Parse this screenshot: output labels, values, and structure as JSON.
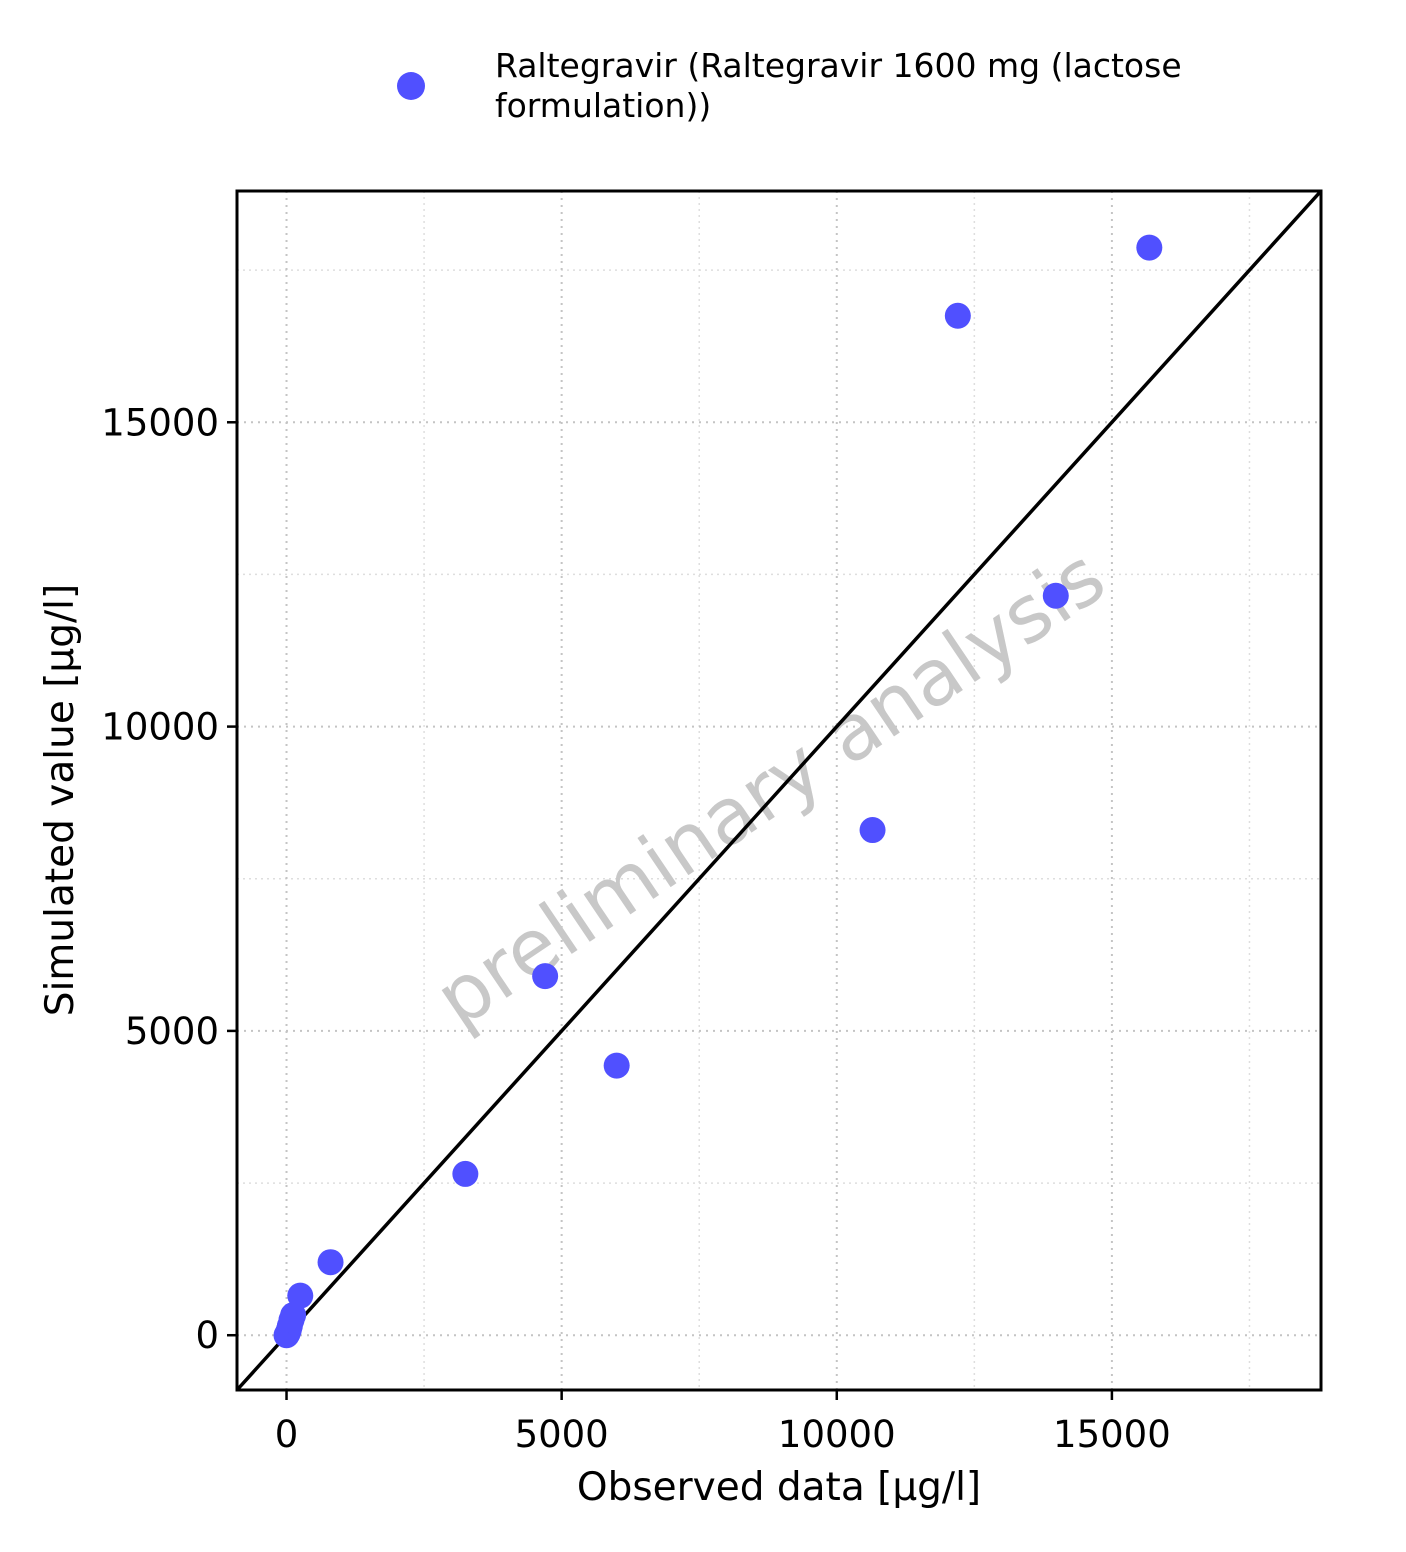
{
  "chart_data": {
    "type": "scatter",
    "title": "",
    "xlabel": "Observed data [µg/l]",
    "ylabel": "Simulated value [µg/l]",
    "xlim": [
      -900,
      18800
    ],
    "ylim": [
      -900,
      18800
    ],
    "x_ticks": [
      0,
      5000,
      10000,
      15000
    ],
    "y_ticks": [
      0,
      5000,
      10000,
      15000
    ],
    "grid": true,
    "identity_line": true,
    "legend_position": "top",
    "watermark": "preliminary analysis",
    "series": [
      {
        "name": "Raltegravir (Raltegravir 1600 mg (lactose formulation))",
        "legend_lines": [
          "Raltegravir (Raltegravir 1600 mg (lactose",
          "formulation))"
        ],
        "color": "#5050ff",
        "points": [
          {
            "x": 0,
            "y": 0
          },
          {
            "x": 20,
            "y": 30
          },
          {
            "x": 40,
            "y": 80
          },
          {
            "x": 60,
            "y": 150
          },
          {
            "x": 90,
            "y": 250
          },
          {
            "x": 120,
            "y": 330
          },
          {
            "x": 250,
            "y": 650
          },
          {
            "x": 800,
            "y": 1200
          },
          {
            "x": 3250,
            "y": 2650
          },
          {
            "x": 4700,
            "y": 5900
          },
          {
            "x": 6000,
            "y": 4430
          },
          {
            "x": 10650,
            "y": 8300
          },
          {
            "x": 12200,
            "y": 16750
          },
          {
            "x": 13980,
            "y": 12150
          },
          {
            "x": 15680,
            "y": 17870
          }
        ]
      }
    ]
  }
}
